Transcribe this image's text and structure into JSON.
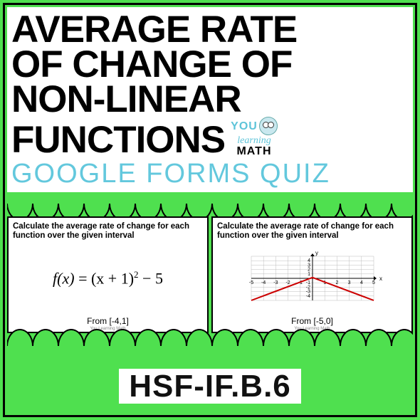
{
  "title": {
    "line1": "AVERAGE RATE",
    "line2": "OF CHANGE OF",
    "line3": "NON-LINEAR",
    "line4": "FUNCTIONS"
  },
  "logo": {
    "line1": "YOU",
    "line2": "learning",
    "line3": "MATH"
  },
  "subtitle": "GOOGLE FORMS QUIZ",
  "cards": {
    "header": "Calculate the average rate of change for each function over the given interval",
    "left": {
      "formula_fx": "f(x)",
      "formula_eq": " = (x + 1)",
      "formula_sup": "2",
      "formula_tail": " − 5",
      "interval": "From [-4,1]"
    },
    "right": {
      "interval": "From [-5,0]",
      "graph": {
        "type": "line",
        "xlim": [
          -5,
          5
        ],
        "ylim": [
          -5,
          5
        ],
        "xticks": [
          -5,
          -4,
          -3,
          -2,
          -1,
          1,
          2,
          3,
          4,
          5
        ],
        "yticks": [
          -4,
          -3,
          -2,
          -1,
          1,
          2,
          3,
          4
        ],
        "grid_color": "#bdbdbd",
        "axis_color": "#000000",
        "line_color": "#cc0000",
        "line_width": 2,
        "points": [
          [
            -5,
            -5
          ],
          [
            0,
            0.2
          ],
          [
            5,
            -5
          ]
        ],
        "background": "#ffffff",
        "tick_fontsize": 7
      }
    },
    "credit": "You Learning Math"
  },
  "standard": "HSF-IF.B.6",
  "colors": {
    "page_bg": "#4fe04f",
    "panel_bg": "#ffffff",
    "title_color": "#000000",
    "subtitle_color": "#63c8dd",
    "border_color": "#000000"
  }
}
